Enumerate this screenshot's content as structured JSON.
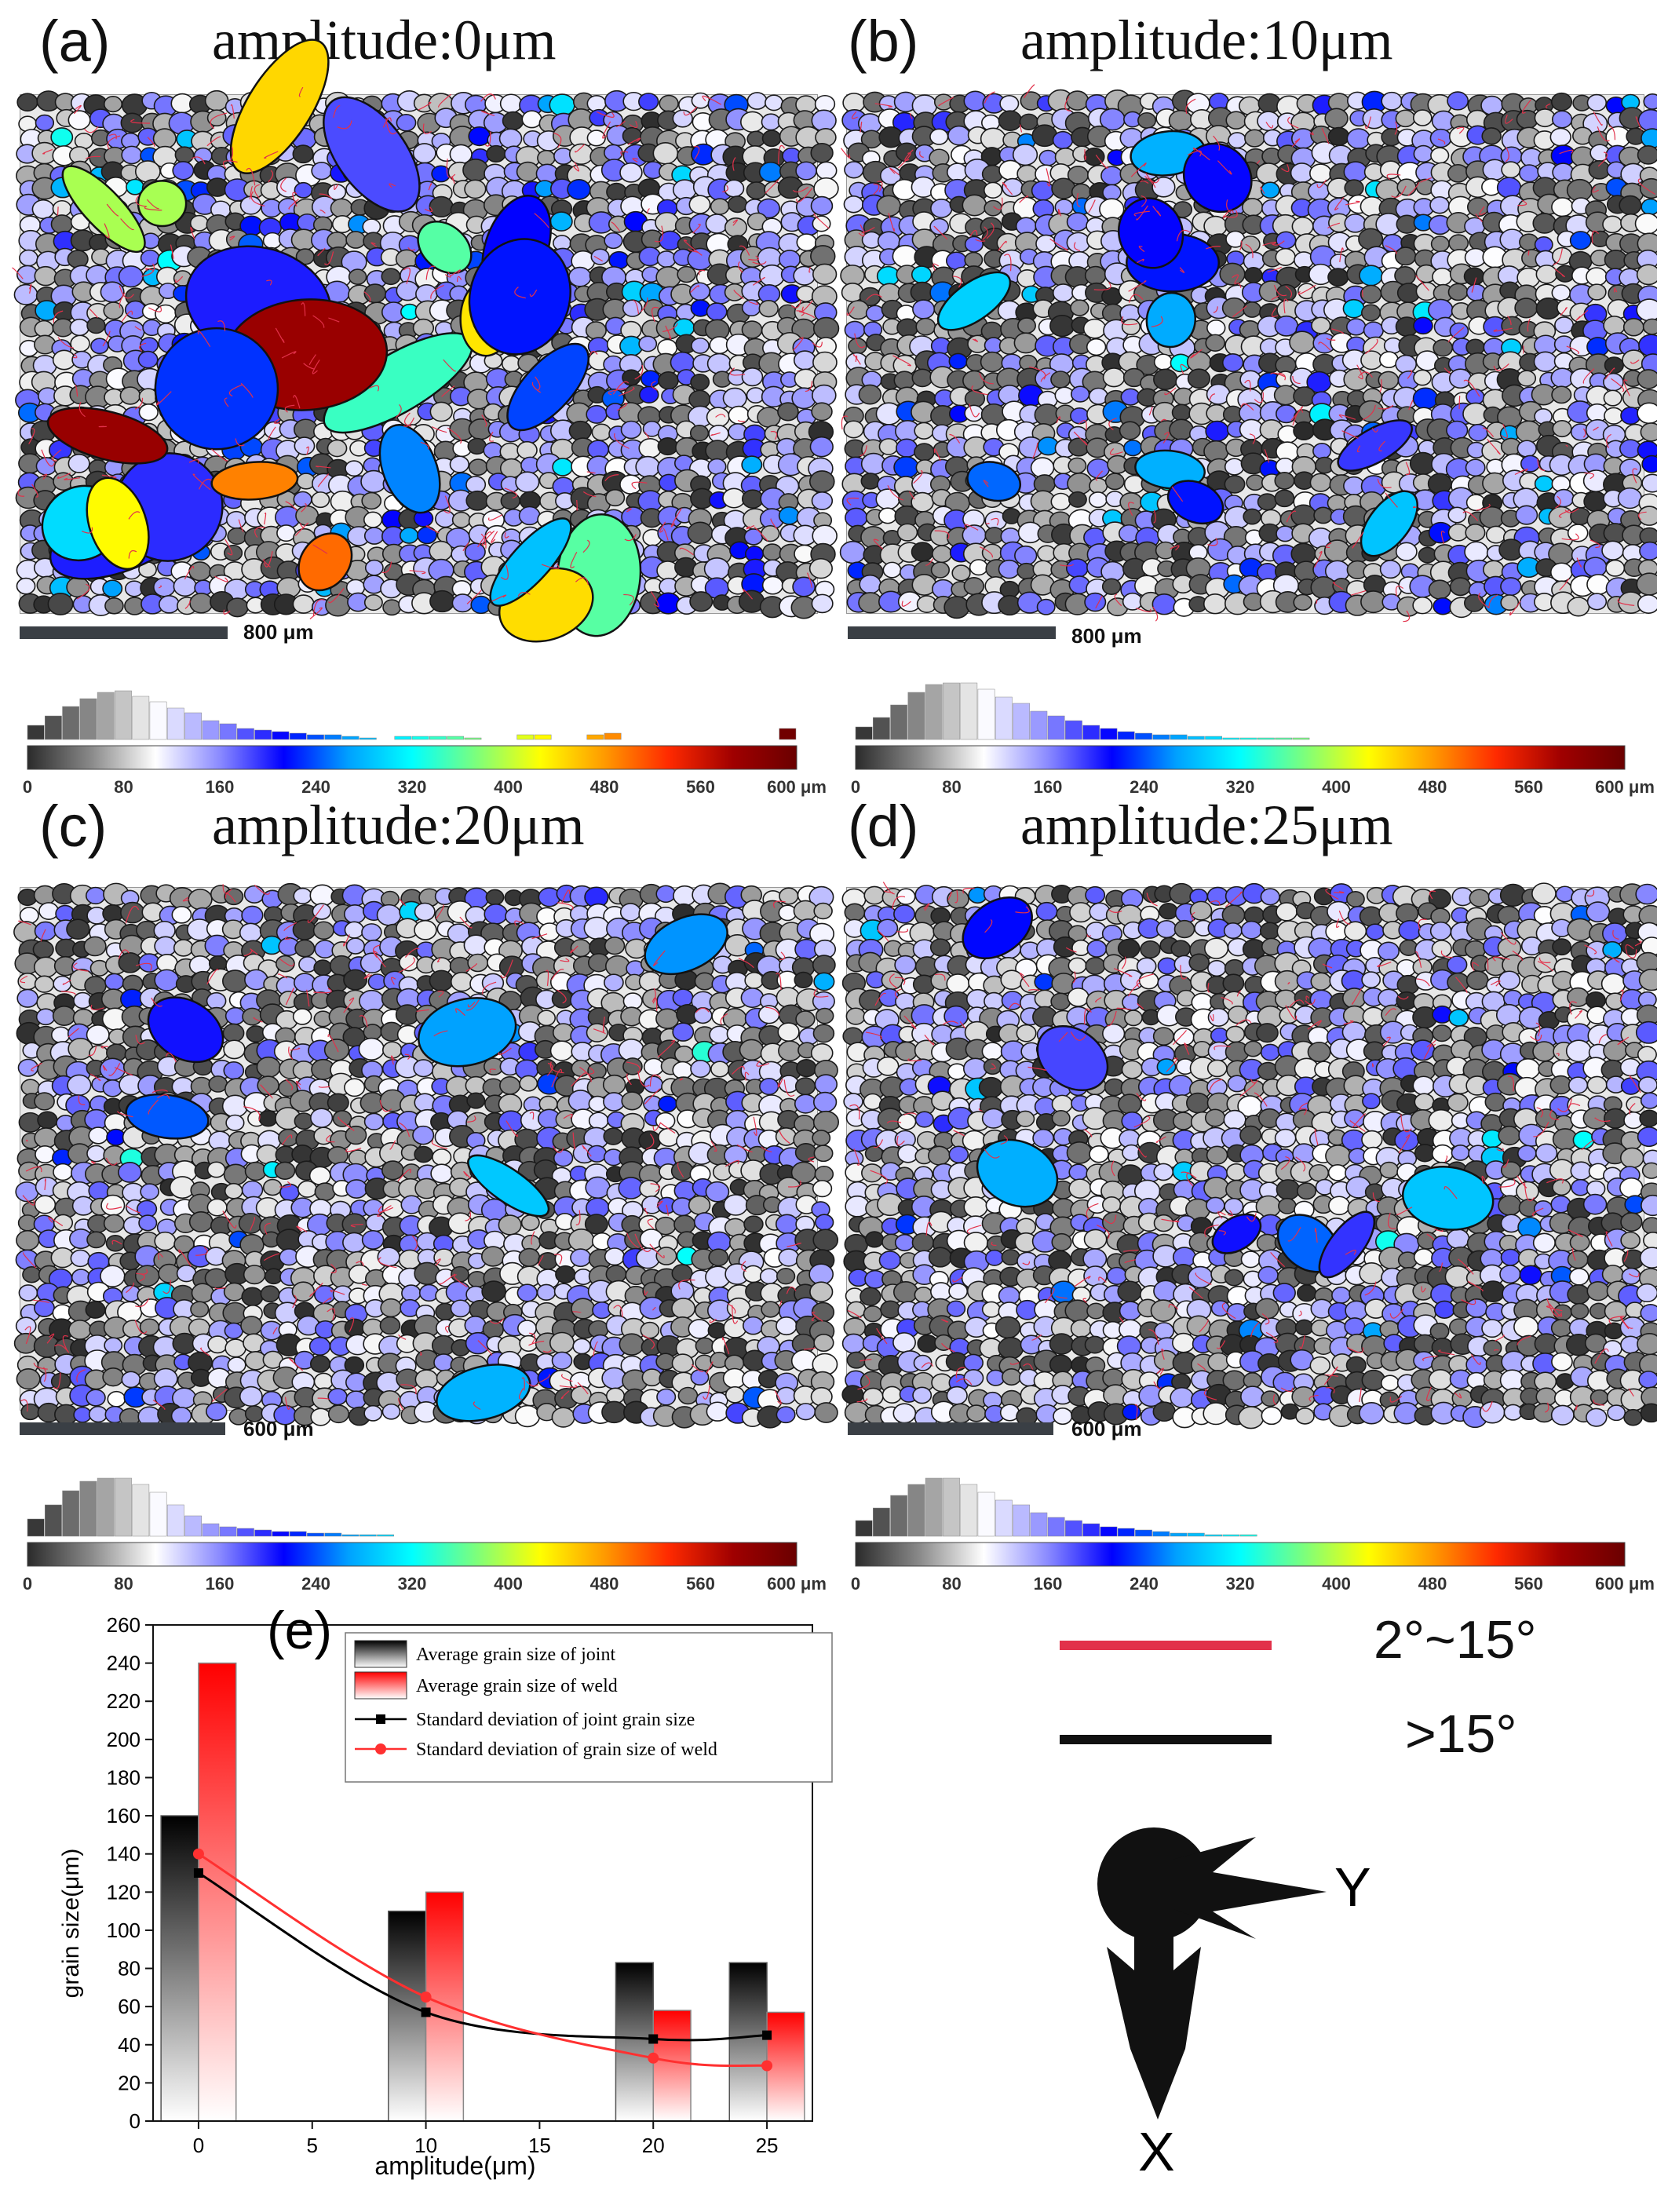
{
  "panels": [
    {
      "label": "(a)",
      "title": "amplitude:0μm",
      "scalebar": "800 μm",
      "histogram": [
        18,
        30,
        42,
        52,
        60,
        62,
        55,
        48,
        40,
        34,
        24,
        20,
        14,
        12,
        10,
        8,
        6,
        6,
        4,
        2,
        0,
        4,
        4,
        4,
        4,
        2,
        0,
        0,
        6,
        6,
        0,
        0,
        6,
        8,
        0,
        0,
        0,
        0,
        0,
        0,
        0,
        0,
        0,
        14
      ]
    },
    {
      "label": "(b)",
      "title": "amplitude:10μm",
      "scalebar": "800 μm",
      "histogram": [
        16,
        28,
        44,
        60,
        70,
        72,
        72,
        64,
        54,
        46,
        36,
        30,
        24,
        18,
        14,
        10,
        8,
        6,
        6,
        4,
        4,
        2,
        2,
        2,
        2,
        2
      ]
    },
    {
      "label": "(c)",
      "title": "amplitude:20μm",
      "scalebar": "600 μm",
      "histogram": [
        22,
        40,
        58,
        70,
        74,
        74,
        66,
        56,
        40,
        26,
        16,
        12,
        10,
        8,
        6,
        6,
        4,
        4,
        2,
        2,
        2
      ]
    },
    {
      "label": "(d)",
      "title": "amplitude:25μm",
      "scalebar": "600 μm",
      "histogram": [
        20,
        36,
        52,
        66,
        74,
        74,
        66,
        56,
        46,
        40,
        30,
        24,
        20,
        16,
        12,
        10,
        8,
        6,
        4,
        4,
        2,
        2,
        2
      ]
    }
  ],
  "colorbar": {
    "ticks": [
      "0",
      "80",
      "160",
      "240",
      "320",
      "400",
      "480",
      "560",
      "600 μm"
    ],
    "colors": [
      "#2b2b2b",
      "#8a8a8a",
      "#ffffff",
      "#8a8aff",
      "#0000ff",
      "#00a0ff",
      "#00ffff",
      "#7cff7c",
      "#ffff00",
      "#ff9a00",
      "#ff2a00",
      "#a00000",
      "#6a0000"
    ]
  },
  "boundary_legend": {
    "items": [
      {
        "label": "2°~15°",
        "color": "#e2314a"
      },
      {
        "label": ">15°",
        "color": "#111111"
      }
    ],
    "axis_y": "Y",
    "axis_x": "X"
  },
  "chart_data": {
    "type": "bar",
    "label": "(e)",
    "xlabel": "amplitude(μm)",
    "ylabel": "grain size(μm)",
    "xlim": [
      -2,
      27
    ],
    "ylim": [
      0,
      260
    ],
    "x_ticks": [
      0,
      5,
      10,
      15,
      20,
      25
    ],
    "y_ticks": [
      0,
      20,
      40,
      60,
      80,
      100,
      120,
      140,
      160,
      180,
      200,
      220,
      240,
      260
    ],
    "categories": [
      0,
      10,
      20,
      25
    ],
    "series": [
      {
        "name": "Average grain size of joint",
        "kind": "bar",
        "color": "#000000",
        "values": [
          160,
          110,
          83,
          83
        ]
      },
      {
        "name": "Average grain size of weld",
        "kind": "bar",
        "color": "#ff0000",
        "values": [
          240,
          120,
          58,
          57
        ]
      },
      {
        "name": "Standard deviation of joint grain size",
        "kind": "line",
        "color": "#000000",
        "x": [
          0,
          10,
          20,
          25
        ],
        "values": [
          130,
          57,
          43,
          45
        ]
      },
      {
        "name": "Standard deviation of grain size of weld",
        "kind": "line",
        "color": "#ff3030",
        "x": [
          0,
          10,
          20,
          25
        ],
        "values": [
          140,
          65,
          33,
          29
        ]
      }
    ]
  }
}
